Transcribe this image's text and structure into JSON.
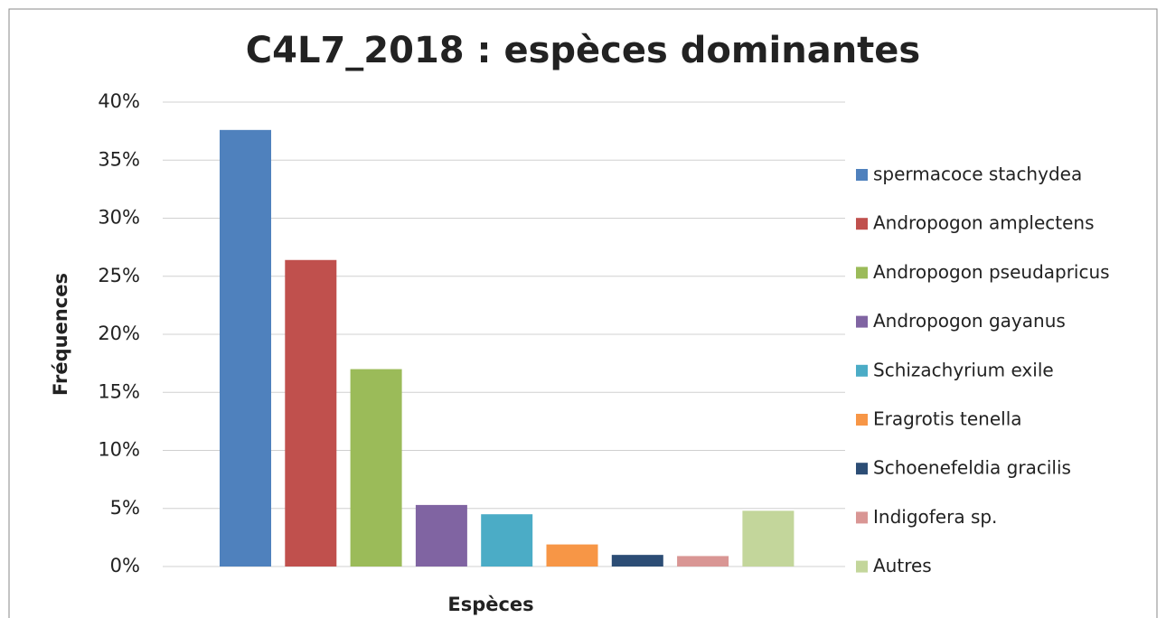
{
  "chart_data": {
    "type": "bar",
    "title": "C4L7_2018 : espèces dominantes",
    "x_label": "Espèces",
    "y_label": "Fréquences",
    "categories": [
      null
    ],
    "series": [
      {
        "name": "spermacoce stachydea",
        "color": "#4f81bd",
        "values": [
          37.6
        ]
      },
      {
        "name": "Andropogon amplectens",
        "color": "#c0504d",
        "values": [
          26.4
        ]
      },
      {
        "name": "Andropogon pseudapricus",
        "color": "#9bbb59",
        "values": [
          17.0
        ]
      },
      {
        "name": "Andropogon gayanus",
        "color": "#8064a2",
        "values": [
          5.3
        ]
      },
      {
        "name": "Schizachyrium exile",
        "color": "#4bacc6",
        "values": [
          4.5
        ]
      },
      {
        "name": "Eragrotis tenella",
        "color": "#f79646",
        "values": [
          1.9
        ]
      },
      {
        "name": "Schoenefeldia gracilis",
        "color": "#2c4d75",
        "values": [
          1.0
        ]
      },
      {
        "name": "Indigofera sp.",
        "color": "#d99694",
        "values": [
          0.9
        ]
      },
      {
        "name": "Autres",
        "color": "#c3d69b",
        "values": [
          4.8
        ]
      }
    ],
    "ylim": [
      0,
      40
    ],
    "yticks": [
      {
        "value": 0,
        "label": "0%"
      },
      {
        "value": 5,
        "label": "5%"
      },
      {
        "value": 10,
        "label": "10%"
      },
      {
        "value": 15,
        "label": "15%"
      },
      {
        "value": 20,
        "label": "20%"
      },
      {
        "value": 25,
        "label": "25%"
      },
      {
        "value": 30,
        "label": "30%"
      },
      {
        "value": 35,
        "label": "35%"
      },
      {
        "value": 40,
        "label": "40%"
      }
    ],
    "grid": true,
    "legend": "right"
  }
}
